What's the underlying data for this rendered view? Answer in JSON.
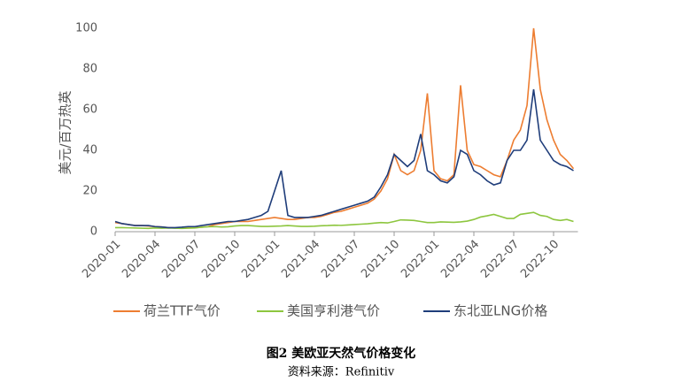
{
  "chart_data": {
    "type": "line",
    "y_label": "美元/百万热英",
    "categories": [
      "2020-01",
      null,
      null,
      null,
      null,
      null,
      "2020-04",
      null,
      null,
      null,
      null,
      null,
      "2020-07",
      null,
      null,
      null,
      null,
      null,
      "2020-10",
      null,
      null,
      null,
      null,
      null,
      "2021-01",
      null,
      null,
      null,
      null,
      null,
      "2021-04",
      null,
      null,
      null,
      null,
      null,
      "2021-07",
      null,
      null,
      null,
      null,
      null,
      "2021-10",
      null,
      null,
      null,
      null,
      null,
      "2022-01",
      null,
      null,
      null,
      null,
      null,
      "2022-04",
      null,
      null,
      null,
      null,
      null,
      "2022-07",
      null,
      null,
      null,
      null,
      null,
      "2022-10",
      null,
      null,
      null
    ],
    "series": [
      {
        "name": "荷兰TTF气价",
        "color": "#ed7d31",
        "values": [
          4.5,
          4,
          3.5,
          3,
          3,
          2.8,
          2.5,
          2.3,
          2,
          1.8,
          1.8,
          2,
          2,
          2.2,
          2.5,
          3.5,
          4,
          4.5,
          5,
          5,
          5,
          5.5,
          6,
          6.5,
          7,
          6.5,
          6,
          6,
          6.5,
          7,
          7,
          7.5,
          8.5,
          9.5,
          10,
          11,
          12,
          13,
          14,
          16,
          20,
          26,
          38,
          30,
          28,
          30,
          40,
          68,
          30,
          26,
          25,
          28,
          72,
          40,
          33,
          32,
          30,
          28,
          27,
          35,
          45,
          50,
          62,
          100,
          70,
          55,
          45,
          38,
          35,
          31
        ]
      },
      {
        "name": "美国亨利港气价",
        "color": "#8dc63f",
        "values": [
          2,
          2,
          1.9,
          1.8,
          1.7,
          1.6,
          1.8,
          1.7,
          1.8,
          1.7,
          1.6,
          1.7,
          1.8,
          2.2,
          2.4,
          2.5,
          2.3,
          2.4,
          2.8,
          3,
          3,
          2.8,
          2.6,
          2.6,
          2.7,
          2.8,
          3,
          2.8,
          2.6,
          2.6,
          2.7,
          2.9,
          3,
          3.2,
          3.1,
          3.3,
          3.5,
          3.7,
          3.9,
          4.2,
          4.5,
          4.3,
          5,
          5.8,
          5.7,
          5.5,
          5,
          4.5,
          4.5,
          4.8,
          4.7,
          4.6,
          4.8,
          5.2,
          6,
          7.2,
          7.8,
          8.5,
          7.5,
          6.5,
          6.5,
          8.5,
          9,
          9.5,
          8,
          7.5,
          6,
          5.5,
          6,
          5
        ]
      },
      {
        "name": "东北亚LNG价格",
        "color": "#1f3d7a",
        "values": [
          5,
          4,
          3.5,
          3,
          3,
          3,
          2.5,
          2.3,
          2,
          2,
          2.2,
          2.5,
          2.5,
          3,
          3.5,
          4,
          4.5,
          5,
          5,
          5.5,
          6,
          7,
          8,
          10,
          20,
          30,
          8,
          7,
          7,
          7,
          7.5,
          8,
          9,
          10,
          11,
          12,
          13,
          14,
          15,
          17,
          22,
          28,
          38,
          35,
          32,
          35,
          48,
          30,
          28,
          25,
          24,
          27,
          40,
          38,
          30,
          28,
          25,
          23,
          24,
          35,
          40,
          40,
          45,
          70,
          45,
          40,
          35,
          33,
          32,
          30
        ]
      }
    ],
    "ylim": [
      0,
      100
    ],
    "yticks": [
      0,
      20,
      40,
      60,
      80,
      100
    ],
    "grid": false,
    "caption": "图2 美欧亚天然气价格变化",
    "source": "资料来源：Refinitiv"
  }
}
